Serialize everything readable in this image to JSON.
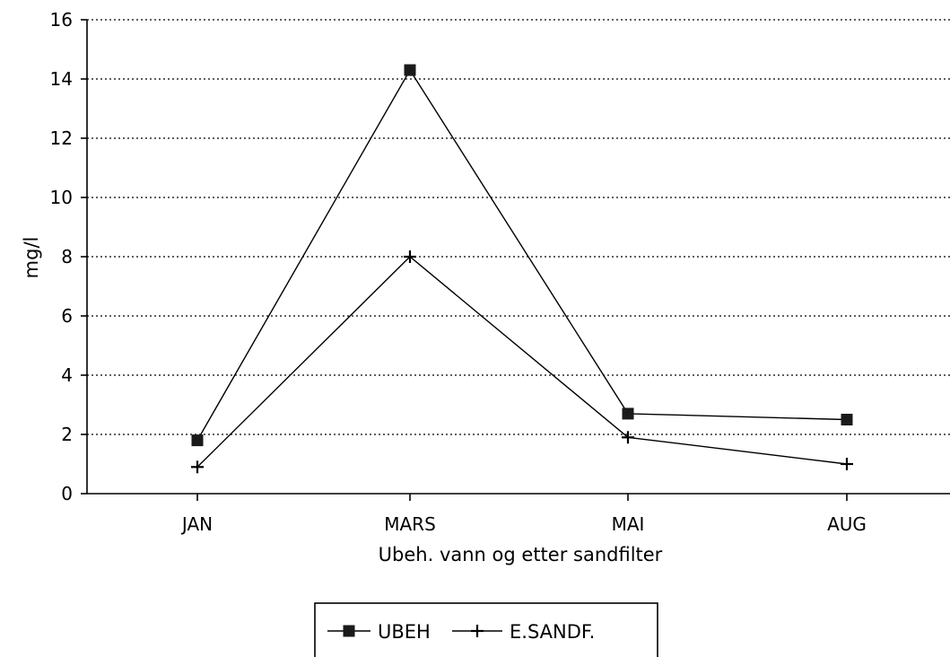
{
  "chart_data": {
    "type": "line",
    "title": "",
    "categories": [
      "JAN",
      "MARS",
      "MAI",
      "AUG"
    ],
    "xlabel": "Ubeh. vann og etter sandfilter",
    "ylabel": "mg/l",
    "ylim": [
      0,
      16
    ],
    "yticks": [
      "0",
      "2",
      "4",
      "6",
      "8",
      "10",
      "12",
      "14",
      "16"
    ],
    "grid": true,
    "legend_position": "bottom",
    "series": [
      {
        "name": "UBEH",
        "values": [
          1.8,
          14.3,
          2.7,
          2.5
        ],
        "marker": "square",
        "color": "#000000"
      },
      {
        "name": "E.SANDF.",
        "values": [
          0.9,
          8.0,
          1.9,
          1.0
        ],
        "marker": "plus",
        "color": "#000000"
      }
    ]
  }
}
